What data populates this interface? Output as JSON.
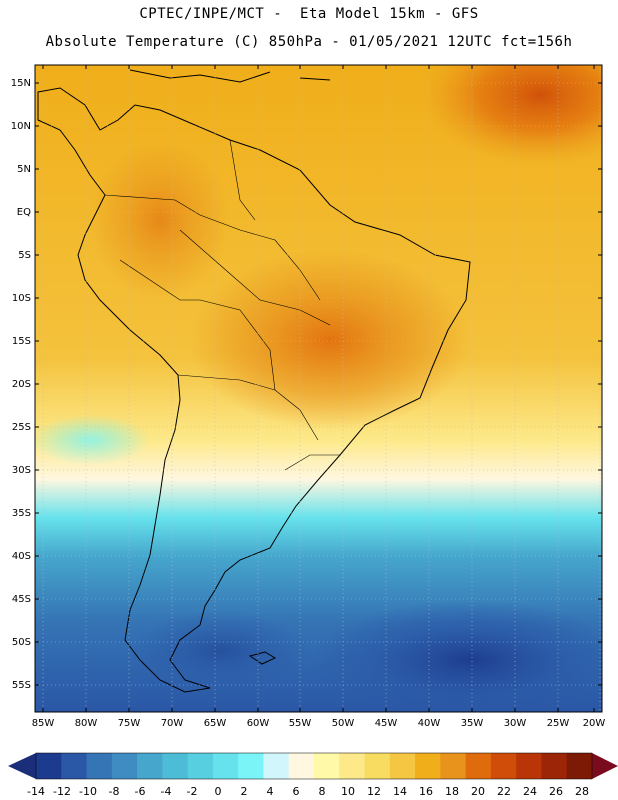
{
  "header": {
    "line1": "CPTEC/INPE/MCT -  Eta Model 15km - GFS",
    "line2": "Absolute Temperature (C) 850hPa - 01/05/2021 12UTC fct=156h"
  },
  "map": {
    "lat_labels": [
      "15N",
      "10N",
      "5N",
      "EQ",
      "5S",
      "10S",
      "15S",
      "20S",
      "25S",
      "30S",
      "35S",
      "40S",
      "45S",
      "50S",
      "55S"
    ],
    "lon_labels": [
      "85W",
      "80W",
      "75W",
      "70W",
      "65W",
      "60W",
      "55W",
      "50W",
      "45W",
      "40W",
      "35W",
      "30W",
      "25W",
      "20W"
    ],
    "lat_range": [
      15,
      -55
    ],
    "lon_range": [
      -85,
      -20
    ]
  },
  "colorbar": {
    "labels": [
      "-14",
      "-12",
      "-10",
      "-8",
      "-6",
      "-4",
      "-2",
      "0",
      "2",
      "4",
      "6",
      "8",
      "10",
      "12",
      "14",
      "16",
      "18",
      "20",
      "22",
      "24",
      "26",
      "28"
    ],
    "colors": [
      "#1d3b8e",
      "#2a57a6",
      "#3574b5",
      "#3f8cc2",
      "#46a6cc",
      "#4dbcd6",
      "#57cfe0",
      "#66e2ec",
      "#7af4f7",
      "#d1f6fb",
      "#fff7e0",
      "#fff9a8",
      "#fde98a",
      "#f8dc62",
      "#f4c642",
      "#f0ae1a",
      "#e8931c",
      "#e06b0c",
      "#cf4d09",
      "#b93508",
      "#9c2407",
      "#7c1a06"
    ],
    "under_color": "#1a2e7a",
    "over_color": "#7a0a1e"
  }
}
